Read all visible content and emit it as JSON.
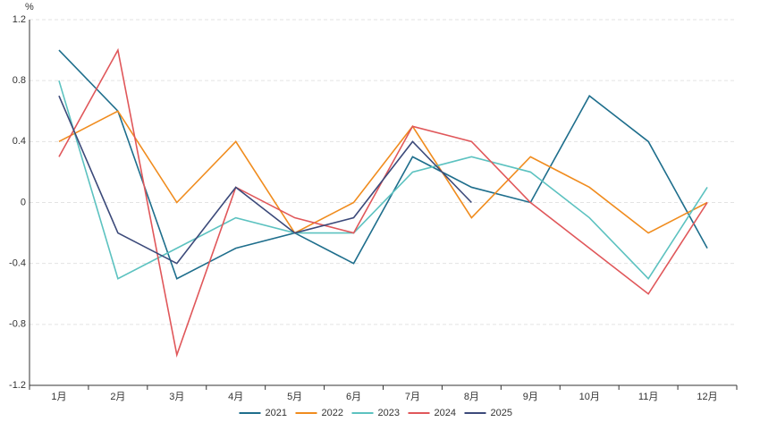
{
  "chart_data": {
    "type": "line",
    "y_label": "%",
    "categories": [
      "1月",
      "2月",
      "3月",
      "4月",
      "5月",
      "6月",
      "7月",
      "8月",
      "9月",
      "10月",
      "11月",
      "12月"
    ],
    "series": [
      {
        "name": "2021",
        "color": "#1e6e8c",
        "values": [
          1.0,
          0.6,
          -0.5,
          -0.3,
          -0.2,
          -0.4,
          0.3,
          0.1,
          0.0,
          0.7,
          0.4,
          -0.3
        ]
      },
      {
        "name": "2022",
        "color": "#f08c1e",
        "values": [
          0.4,
          0.6,
          0.0,
          0.4,
          -0.2,
          0.0,
          0.5,
          -0.1,
          0.3,
          0.1,
          -0.2,
          0.0
        ]
      },
      {
        "name": "2023",
        "color": "#5cc2c0",
        "values": [
          0.8,
          -0.5,
          -0.3,
          -0.1,
          -0.2,
          -0.2,
          0.2,
          0.3,
          0.2,
          -0.1,
          -0.5,
          0.1
        ]
      },
      {
        "name": "2024",
        "color": "#e0575a",
        "values": [
          0.3,
          1.0,
          -1.0,
          0.1,
          -0.1,
          -0.2,
          0.5,
          0.4,
          0.0,
          -0.3,
          -0.6,
          0.0
        ]
      },
      {
        "name": "2025",
        "color": "#3c4a7a",
        "values": [
          0.7,
          -0.2,
          -0.4,
          0.1,
          -0.2,
          -0.1,
          0.4,
          0.0,
          null,
          null,
          null,
          null
        ]
      }
    ],
    "ylim": [
      -1.2,
      1.2
    ],
    "yticks": [
      -1.2,
      -0.8,
      -0.4,
      0,
      0.4,
      0.8,
      1.2
    ],
    "grid": true,
    "legend": "bottom"
  }
}
